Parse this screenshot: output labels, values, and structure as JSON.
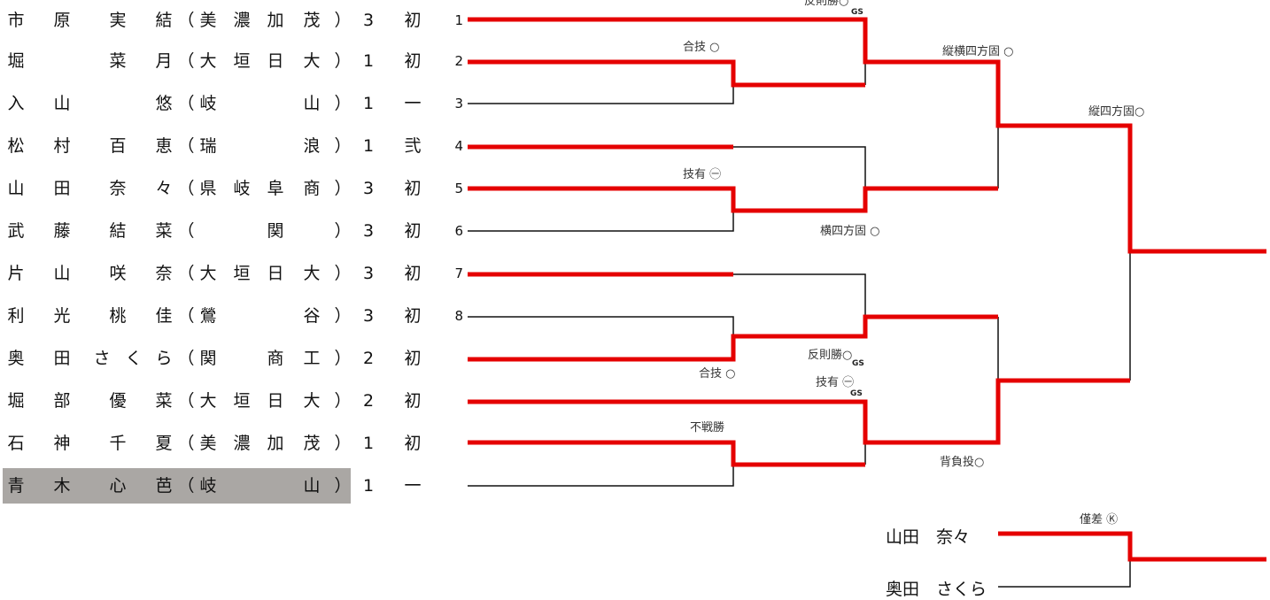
{
  "entrants": [
    {
      "family": [
        "市",
        "原"
      ],
      "given": [
        "実",
        "結"
      ],
      "school": [
        "美",
        "濃",
        "加",
        "茂"
      ],
      "grade": "3",
      "dan": "初",
      "number": "1"
    },
    {
      "family": [
        "堀",
        ""
      ],
      "given": [
        "菜",
        "月"
      ],
      "school": [
        "大",
        "垣",
        "日",
        "大"
      ],
      "grade": "1",
      "dan": "初",
      "number": "2"
    },
    {
      "family": [
        "入",
        "山"
      ],
      "given": [
        "",
        "悠"
      ],
      "school": [
        "岐",
        "",
        "",
        "山"
      ],
      "grade": "1",
      "dan": "一",
      "number": "3"
    },
    {
      "family": [
        "松",
        "村"
      ],
      "given": [
        "百",
        "恵"
      ],
      "school": [
        "瑞",
        "",
        "",
        "浪"
      ],
      "grade": "1",
      "dan": "弐",
      "number": "4"
    },
    {
      "family": [
        "山",
        "田"
      ],
      "given": [
        "奈",
        "々"
      ],
      "school": [
        "県",
        "岐",
        "阜",
        "商"
      ],
      "grade": "3",
      "dan": "初",
      "number": "5"
    },
    {
      "family": [
        "武",
        "藤"
      ],
      "given": [
        "結",
        "菜"
      ],
      "school": [
        "",
        "",
        "関",
        ""
      ],
      "grade": "3",
      "dan": "初",
      "number": "6"
    },
    {
      "family": [
        "片",
        "山"
      ],
      "given": [
        "咲",
        "奈"
      ],
      "school": [
        "大",
        "垣",
        "日",
        "大"
      ],
      "grade": "3",
      "dan": "初",
      "number": "7"
    },
    {
      "family": [
        "利",
        "光"
      ],
      "given": [
        "桃",
        "佳"
      ],
      "school": [
        "鶯",
        "",
        "",
        "谷"
      ],
      "grade": "3",
      "dan": "初",
      "number": "8"
    },
    {
      "family": [
        "奥",
        "田"
      ],
      "given": [
        "さ",
        "く",
        "ら"
      ],
      "school": [
        "関",
        "",
        "商",
        "工"
      ],
      "grade": "2",
      "dan": "初",
      "number": ""
    },
    {
      "family": [
        "堀",
        "部"
      ],
      "given": [
        "優",
        "菜"
      ],
      "school": [
        "大",
        "垣",
        "日",
        "大"
      ],
      "grade": "2",
      "dan": "初",
      "number": ""
    },
    {
      "family": [
        "石",
        "神"
      ],
      "given": [
        "千",
        "夏"
      ],
      "school": [
        "美",
        "濃",
        "加",
        "茂"
      ],
      "grade": "1",
      "dan": "初",
      "number": ""
    },
    {
      "family": [
        "青",
        "木"
      ],
      "given": [
        "心",
        "芭"
      ],
      "school": [
        "岐",
        "",
        "",
        "山"
      ],
      "grade": "1",
      "dan": "一",
      "number": ""
    }
  ],
  "paren_open": "（",
  "paren_close": "）",
  "results": {
    "r1_m1": "合技 ○",
    "r1_m2": "技有 ㊀",
    "r1_m3": "合技 ○",
    "r1_m4": "不戦勝",
    "r2_m1": "反則勝○",
    "r2_m2": "横四方固 ○",
    "r2_m3": "反則勝○",
    "r2_m4": "技有 ㊀",
    "r3_m1": "縦横四方固 ○",
    "r3_m2": "背負投○",
    "final": "縦四方固○",
    "playoff": "僅差 Ⓚ",
    "gs": "GS"
  },
  "playoff": {
    "top": "山田　奈々",
    "bottom": "奥田　さくら"
  },
  "colors": {
    "winner": "#e50000",
    "line": "#111111",
    "highlight": "#aaa7a4"
  }
}
